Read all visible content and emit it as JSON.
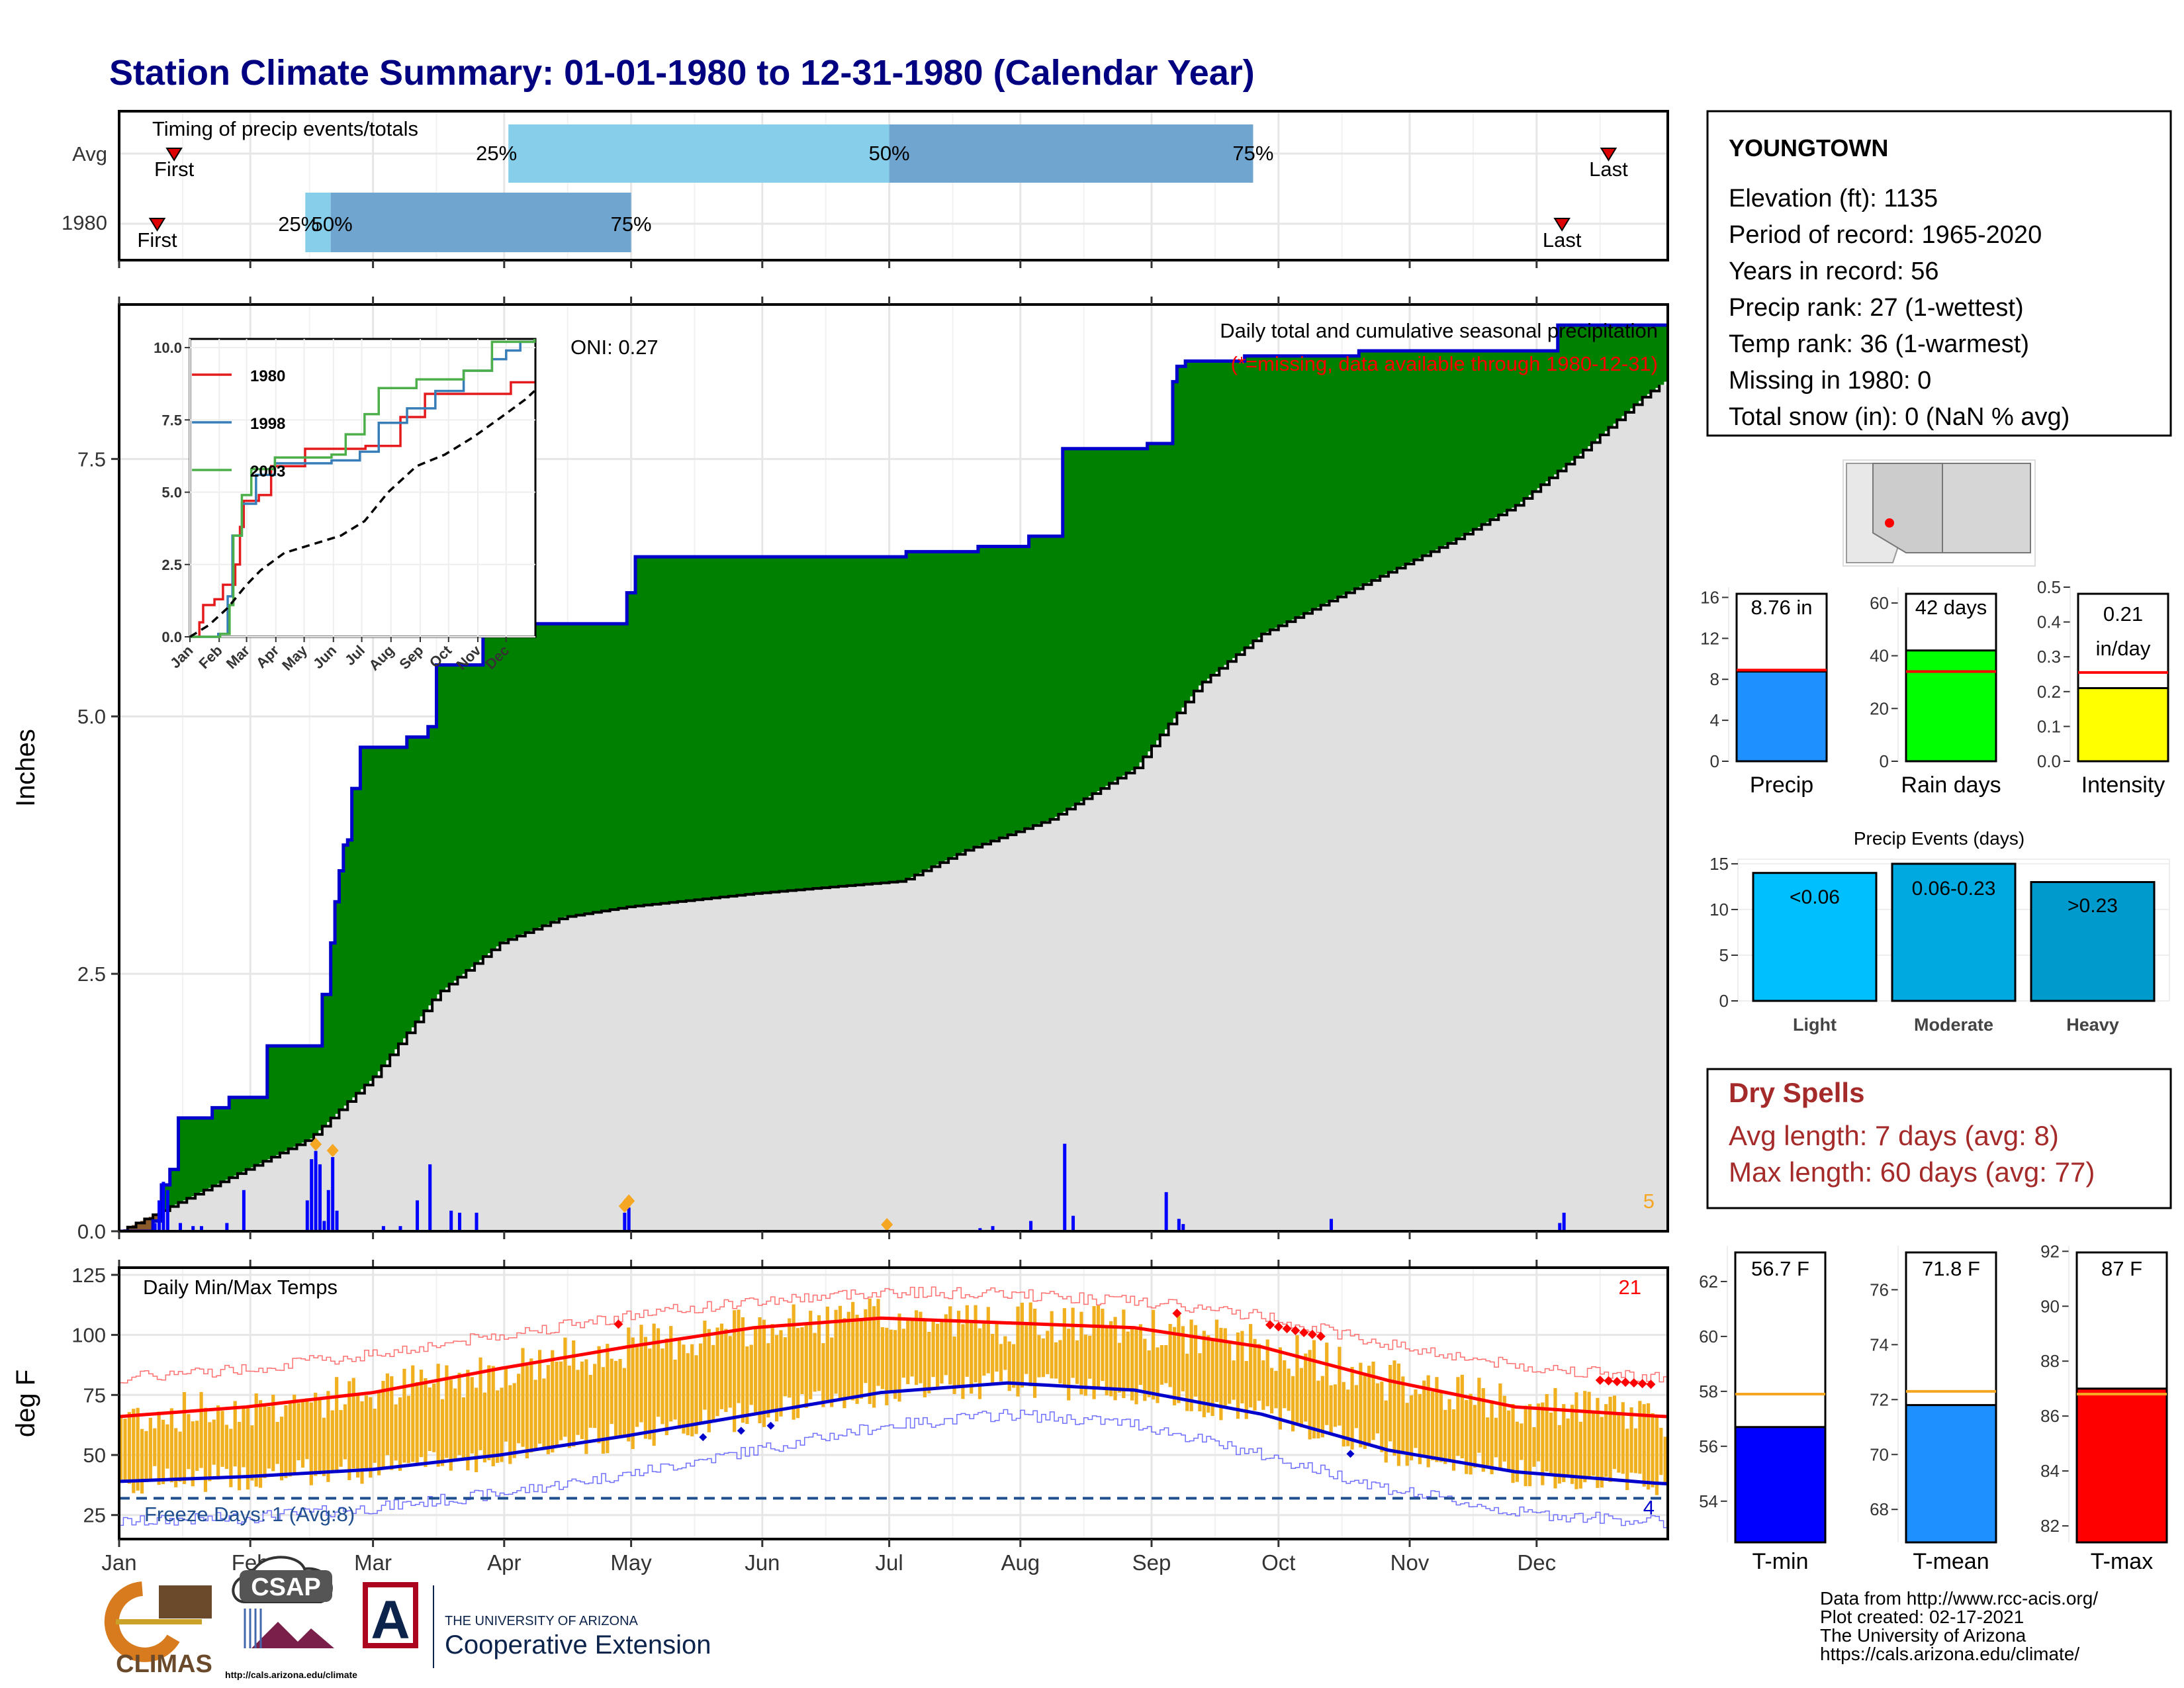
{
  "title": "Station Climate Summary: 01-01-1980 to 12-31-1980 (Calendar Year)",
  "months": [
    "Jan",
    "Feb",
    "Mar",
    "Apr",
    "May",
    "Jun",
    "Jul",
    "Aug",
    "Sep",
    "Oct",
    "Nov",
    "Dec"
  ],
  "timing": {
    "label": "Timing of precip events/totals",
    "rows": [
      {
        "name": "Avg",
        "first_label": "First",
        "last_label": "Last",
        "first_doy": 13,
        "last_doy": 352,
        "p25_doy": 92,
        "p50_doy": 182,
        "p75_doy": 268,
        "p25_label": "25%",
        "p50_label": "50%",
        "p75_label": "75%"
      },
      {
        "name": "1980",
        "first_label": "First",
        "last_label": "Last",
        "first_doy": 9,
        "last_doy": 341,
        "p25_doy": 44,
        "p50_doy": 50,
        "p75_doy": 121,
        "p25_label": "25%",
        "p50_label": "50%",
        "p75_label": "75%"
      }
    ]
  },
  "station": {
    "name": "YOUNGTOWN",
    "lines": [
      "Elevation (ft): 1135",
      "Period of record: 1965-2020",
      "Years in record: 56",
      "Precip rank: 27 (1-wettest)",
      "Temp rank: 36 (1-warmest)",
      "Missing in 1980: 0",
      "Total snow (in): 0 (NaN % avg)"
    ]
  },
  "precip": {
    "ylabel": "Inches",
    "subtitle": "Daily total and cumulative seasonal precipitation",
    "missing_note": "(*=missing, data available through 1980-12-31)",
    "oni": "ONI: 0.27",
    "corner_count": "5",
    "colors": {
      "above": "#008000",
      "below": "#8B5A2B",
      "avg_fill": "#e0e0e0",
      "line": "#0000cc",
      "bars": "#0000ff"
    }
  },
  "chart_data": [
    {
      "type": "area",
      "name": "cumulative-precip",
      "ylim": [
        0,
        9
      ],
      "yticks": [
        0.0,
        2.5,
        5.0,
        7.5
      ],
      "series": [
        {
          "name": "1980",
          "steps": [
            [
              0,
              0
            ],
            [
              8,
              0.1
            ],
            [
              10,
              0.45
            ],
            [
              12,
              0.6
            ],
            [
              14,
              1.1
            ],
            [
              22,
              1.2
            ],
            [
              26,
              1.3
            ],
            [
              35,
              1.8
            ],
            [
              48,
              2.3
            ],
            [
              50,
              2.8
            ],
            [
              51,
              3.2
            ],
            [
              52,
              3.5
            ],
            [
              53,
              3.75
            ],
            [
              54,
              3.8
            ],
            [
              55,
              4.3
            ],
            [
              57,
              4.7
            ],
            [
              68,
              4.8
            ],
            [
              73,
              4.9
            ],
            [
              75,
              5.5
            ],
            [
              86,
              5.9
            ],
            [
              120,
              6.2
            ],
            [
              122,
              6.55
            ],
            [
              186,
              6.6
            ],
            [
              203,
              6.65
            ],
            [
              215,
              6.75
            ],
            [
              223,
              7.6
            ],
            [
              243,
              7.65
            ],
            [
              249,
              8.25
            ],
            [
              250,
              8.4
            ],
            [
              252,
              8.45
            ],
            [
              266,
              8.5
            ],
            [
              293,
              8.55
            ],
            [
              340,
              8.8
            ],
            [
              365,
              8.8
            ]
          ]
        },
        {
          "name": "Avg",
          "points": [
            [
              0,
              0
            ],
            [
              10,
              0.2
            ],
            [
              30,
              0.6
            ],
            [
              45,
              0.9
            ],
            [
              60,
              1.5
            ],
            [
              75,
              2.3
            ],
            [
              90,
              2.8
            ],
            [
              105,
              3.05
            ],
            [
              120,
              3.15
            ],
            [
              150,
              3.28
            ],
            [
              170,
              3.35
            ],
            [
              185,
              3.4
            ],
            [
              200,
              3.7
            ],
            [
              220,
              4.0
            ],
            [
              240,
              4.5
            ],
            [
              255,
              5.3
            ],
            [
              270,
              5.8
            ],
            [
              285,
              6.1
            ],
            [
              300,
              6.4
            ],
            [
              315,
              6.7
            ],
            [
              330,
              7.05
            ],
            [
              345,
              7.55
            ],
            [
              360,
              8.1
            ],
            [
              365,
              8.25
            ]
          ]
        }
      ],
      "daily_bars": [
        [
          8,
          0.08
        ],
        [
          9,
          0.3
        ],
        [
          10,
          0.48
        ],
        [
          11,
          0.4
        ],
        [
          14,
          0.08
        ],
        [
          17,
          0.05
        ],
        [
          19,
          0.05
        ],
        [
          25,
          0.08
        ],
        [
          29,
          0.4
        ],
        [
          44,
          0.3
        ],
        [
          45,
          0.7
        ],
        [
          46,
          0.78
        ],
        [
          47,
          0.65
        ],
        [
          48,
          0.1
        ],
        [
          49,
          0.4
        ],
        [
          50,
          0.72
        ],
        [
          51,
          0.2
        ],
        [
          62,
          0.05
        ],
        [
          66,
          0.05
        ],
        [
          70,
          0.3
        ],
        [
          73,
          0.65
        ],
        [
          78,
          0.2
        ],
        [
          80,
          0.18
        ],
        [
          84,
          0.18
        ],
        [
          119,
          0.18
        ],
        [
          120,
          0.23
        ],
        [
          203,
          0.03
        ],
        [
          206,
          0.05
        ],
        [
          215,
          0.1
        ],
        [
          223,
          0.85
        ],
        [
          225,
          0.15
        ],
        [
          247,
          0.38
        ],
        [
          250,
          0.12
        ],
        [
          251,
          0.07
        ],
        [
          286,
          0.12
        ],
        [
          340,
          0.08
        ],
        [
          341,
          0.18
        ]
      ],
      "trace_markers": [
        46,
        50,
        119,
        120,
        181
      ]
    },
    {
      "type": "line",
      "name": "inset-cumulative",
      "xlabels": [
        "Jan",
        "Feb",
        "Mar",
        "Apr",
        "May",
        "Jun",
        "Jul",
        "Aug",
        "Sep",
        "Oct",
        "Nov",
        "Dec"
      ],
      "yticks": [
        0.0,
        2.5,
        5.0,
        7.5,
        10.0
      ],
      "ylim": [
        0,
        10.3
      ],
      "series": [
        {
          "name": "1980",
          "color": "#e41a1c",
          "points": [
            [
              0,
              0
            ],
            [
              10,
              0.5
            ],
            [
              14,
              1.1
            ],
            [
              26,
              1.3
            ],
            [
              35,
              1.8
            ],
            [
              48,
              2.5
            ],
            [
              53,
              3.8
            ],
            [
              57,
              4.7
            ],
            [
              73,
              4.9
            ],
            [
              86,
              5.9
            ],
            [
              122,
              6.5
            ],
            [
              186,
              6.6
            ],
            [
              223,
              7.6
            ],
            [
              249,
              8.4
            ],
            [
              340,
              8.8
            ],
            [
              365,
              8.8
            ]
          ]
        },
        {
          "name": "1998",
          "color": "#377eb8",
          "points": [
            [
              0,
              0
            ],
            [
              30,
              0.1
            ],
            [
              40,
              1.4
            ],
            [
              45,
              3.5
            ],
            [
              55,
              4.6
            ],
            [
              70,
              5.6
            ],
            [
              90,
              6.0
            ],
            [
              150,
              6.1
            ],
            [
              180,
              6.4
            ],
            [
              200,
              7.4
            ],
            [
              230,
              7.9
            ],
            [
              260,
              8.5
            ],
            [
              290,
              9.2
            ],
            [
              320,
              9.6
            ],
            [
              335,
              9.9
            ],
            [
              350,
              10.2
            ],
            [
              365,
              10.2
            ]
          ]
        },
        {
          "name": "2003",
          "color": "#4daf4a",
          "points": [
            [
              0,
              0
            ],
            [
              32,
              0.1
            ],
            [
              42,
              1.1
            ],
            [
              46,
              3.5
            ],
            [
              55,
              4.9
            ],
            [
              65,
              5.8
            ],
            [
              90,
              6.2
            ],
            [
              150,
              6.3
            ],
            [
              165,
              7.0
            ],
            [
              185,
              7.7
            ],
            [
              200,
              8.6
            ],
            [
              240,
              8.9
            ],
            [
              290,
              9.2
            ],
            [
              320,
              10.2
            ],
            [
              365,
              10.3
            ]
          ]
        },
        {
          "name": "avg",
          "color": "#000000",
          "dashed": true,
          "points": [
            [
              0,
              0
            ],
            [
              20,
              0.4
            ],
            [
              40,
              1.0
            ],
            [
              60,
              1.8
            ],
            [
              75,
              2.3
            ],
            [
              100,
              2.9
            ],
            [
              130,
              3.2
            ],
            [
              160,
              3.5
            ],
            [
              185,
              4.0
            ],
            [
              210,
              5.0
            ],
            [
              240,
              5.9
            ],
            [
              270,
              6.3
            ],
            [
              300,
              6.9
            ],
            [
              330,
              7.6
            ],
            [
              355,
              8.2
            ],
            [
              365,
              8.5
            ]
          ]
        }
      ]
    },
    {
      "type": "line",
      "name": "daily-temps",
      "title": "Daily Min/Max Temps",
      "ylabel": "deg F",
      "ylim": [
        15,
        128
      ],
      "yticks": [
        25,
        50,
        75,
        100,
        125
      ],
      "freeze_label": "Freeze Days: 1 (Avg:8)",
      "freeze_line": 32,
      "record_high_count": "21",
      "record_low_count": "4",
      "avg_max_anchors": [
        [
          0,
          66
        ],
        [
          30,
          70
        ],
        [
          60,
          76
        ],
        [
          90,
          86
        ],
        [
          120,
          95
        ],
        [
          150,
          103
        ],
        [
          180,
          107
        ],
        [
          210,
          105
        ],
        [
          240,
          103
        ],
        [
          270,
          95
        ],
        [
          300,
          81
        ],
        [
          330,
          70
        ],
        [
          365,
          66
        ]
      ],
      "avg_min_anchors": [
        [
          0,
          39
        ],
        [
          30,
          41
        ],
        [
          60,
          44
        ],
        [
          90,
          50
        ],
        [
          120,
          58
        ],
        [
          150,
          67
        ],
        [
          180,
          76
        ],
        [
          210,
          80
        ],
        [
          240,
          77
        ],
        [
          270,
          67
        ],
        [
          300,
          52
        ],
        [
          330,
          43
        ],
        [
          365,
          38
        ]
      ],
      "rec_max_anchors": [
        [
          0,
          82
        ],
        [
          30,
          86
        ],
        [
          60,
          92
        ],
        [
          90,
          100
        ],
        [
          120,
          108
        ],
        [
          150,
          114
        ],
        [
          180,
          118
        ],
        [
          210,
          117
        ],
        [
          240,
          114
        ],
        [
          270,
          108
        ],
        [
          300,
          96
        ],
        [
          330,
          87
        ],
        [
          365,
          82
        ]
      ],
      "rec_min_anchors": [
        [
          0,
          22
        ],
        [
          30,
          24
        ],
        [
          60,
          28
        ],
        [
          90,
          34
        ],
        [
          120,
          42
        ],
        [
          150,
          52
        ],
        [
          180,
          62
        ],
        [
          210,
          67
        ],
        [
          240,
          63
        ],
        [
          270,
          50
        ],
        [
          300,
          36
        ],
        [
          330,
          26
        ],
        [
          365,
          22
        ]
      ]
    },
    {
      "type": "bar",
      "name": "season-precip",
      "categories": [
        "Precip"
      ],
      "values": [
        8.76
      ],
      "avg": 8.9,
      "label": "8.76 in",
      "ylim": [
        0,
        17
      ],
      "yticks": [
        0,
        4,
        8,
        12,
        16
      ],
      "color": "#1E90FF"
    },
    {
      "type": "bar",
      "name": "season-raindays",
      "categories": [
        "Rain days"
      ],
      "values": [
        42
      ],
      "avg": 34,
      "label": "42 days",
      "ylim": [
        0,
        66
      ],
      "yticks": [
        0,
        20,
        40,
        60
      ],
      "color": "#00ff00"
    },
    {
      "type": "bar",
      "name": "season-intensity",
      "categories": [
        "Intensity"
      ],
      "values": [
        0.21
      ],
      "avg": 0.255,
      "label": "0.21",
      "label2": "in/day",
      "ylim": [
        0,
        0.5
      ],
      "yticks": [
        0.0,
        0.1,
        0.2,
        0.3,
        0.4,
        0.5
      ],
      "color": "#ffff00"
    },
    {
      "type": "bar",
      "name": "precip-events",
      "title": "Precip Events (days)",
      "categories": [
        "Light",
        "Moderate",
        "Heavy"
      ],
      "values": [
        14,
        15,
        13
      ],
      "labels": [
        "<0.06",
        "0.06-0.23",
        ">0.23"
      ],
      "ylim": [
        0,
        15.5
      ],
      "yticks": [
        0,
        5,
        10,
        15
      ],
      "colors": [
        "#00BFFF",
        "#00a9e0",
        "#009ACD"
      ]
    },
    {
      "type": "bar",
      "name": "season-tmin",
      "categories": [
        "T-min"
      ],
      "values": [
        56.7
      ],
      "avg": 57.9,
      "label": "56.7 F",
      "ylim": [
        52.5,
        63.3
      ],
      "yticks": [
        54,
        56,
        58,
        60,
        62
      ],
      "color": "#0000ff"
    },
    {
      "type": "bar",
      "name": "season-tmean",
      "categories": [
        "T-mean"
      ],
      "values": [
        71.8
      ],
      "avg": 72.3,
      "label": "71.8 F",
      "ylim": [
        66.8,
        77.6
      ],
      "yticks": [
        68,
        70,
        72,
        74,
        76
      ],
      "color": "#1E90FF"
    },
    {
      "type": "bar",
      "name": "season-tmax",
      "categories": [
        "T-max"
      ],
      "values": [
        87
      ],
      "avg": 86.8,
      "label": "87 F",
      "ylim": [
        81.4,
        92.2
      ],
      "yticks": [
        82,
        84,
        86,
        88,
        90,
        92
      ],
      "color": "#ff0000"
    }
  ],
  "dry_spells": {
    "title": "Dry Spells",
    "line1": "Avg length: 7 days (avg: 8)",
    "line2": "Max length: 60 days (avg: 77)"
  },
  "logos": {
    "climas": "CLIMAS",
    "csap": "CSAP",
    "csap_url": "http://cals.arizona.edu/climate",
    "ua_line1": "THE UNIVERSITY OF ARIZONA",
    "ua_line2": "Cooperative Extension",
    "ua_letter": "A"
  },
  "footer": [
    "Data from http://www.rcc-acis.org/",
    "Plot created: 02-17-2021",
    "The University of Arizona",
    "https://cals.arizona.edu/climate/"
  ],
  "colors": {
    "title": "#000080",
    "dry": "#a52a2a",
    "temp_bar": "#f0b020",
    "avg_max": "#ff0000",
    "avg_min": "#0000cc"
  }
}
